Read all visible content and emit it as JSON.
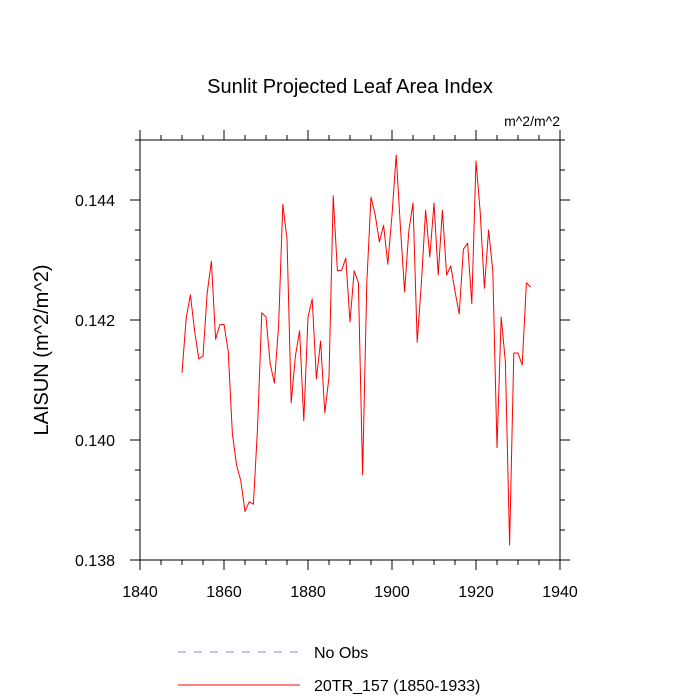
{
  "chart_data": {
    "type": "line",
    "title": "Sunlit Projected Leaf Area Index",
    "units_label": "m^2/m^2",
    "xlabel": "",
    "ylabel": "LAISUN  (m^2/m^2)",
    "xlim": [
      1840,
      1940
    ],
    "ylim": [
      0.138,
      0.145
    ],
    "xticks": [
      1840,
      1860,
      1880,
      1900,
      1920,
      1940
    ],
    "yticks": [
      0.138,
      0.14,
      0.142,
      0.144
    ],
    "ytick_labels": [
      "0.138",
      "0.140",
      "0.142",
      "0.144"
    ],
    "xminor_step": 5,
    "yminor_step": 0.0005,
    "grid": false,
    "legend_position": "bottom-left",
    "series": [
      {
        "name": "No Obs",
        "color": "#8080ff",
        "style": "dashed",
        "x": [],
        "values": []
      },
      {
        "name": "20TR_157 (1850-1933)",
        "color": "#ff0000",
        "style": "solid",
        "x": [
          1850,
          1851,
          1852,
          1853,
          1854,
          1855,
          1856,
          1857,
          1858,
          1859,
          1860,
          1861,
          1862,
          1863,
          1864,
          1865,
          1866,
          1867,
          1868,
          1869,
          1870,
          1871,
          1872,
          1873,
          1874,
          1875,
          1876,
          1877,
          1878,
          1879,
          1880,
          1881,
          1882,
          1883,
          1884,
          1885,
          1886,
          1887,
          1888,
          1889,
          1890,
          1891,
          1892,
          1893,
          1894,
          1895,
          1896,
          1897,
          1898,
          1899,
          1900,
          1901,
          1902,
          1903,
          1904,
          1905,
          1906,
          1907,
          1908,
          1909,
          1910,
          1911,
          1912,
          1913,
          1914,
          1915,
          1916,
          1917,
          1918,
          1919,
          1920,
          1921,
          1922,
          1923,
          1924,
          1925,
          1926,
          1927,
          1928,
          1929,
          1930,
          1931,
          1932,
          1933
        ],
        "values": [
          0.14112,
          0.14203,
          0.14242,
          0.14182,
          0.14135,
          0.1414,
          0.14245,
          0.14298,
          0.14168,
          0.14192,
          0.14193,
          0.14148,
          0.1401,
          0.13958,
          0.13932,
          0.13881,
          0.13897,
          0.13893,
          0.14022,
          0.14212,
          0.14205,
          0.14127,
          0.14095,
          0.1419,
          0.14393,
          0.14335,
          0.14062,
          0.1414,
          0.14182,
          0.14032,
          0.14205,
          0.14235,
          0.14102,
          0.14165,
          0.14045,
          0.14105,
          0.14407,
          0.14282,
          0.14283,
          0.14303,
          0.14197,
          0.14282,
          0.14262,
          0.13942,
          0.14262,
          0.14405,
          0.14375,
          0.1433,
          0.14358,
          0.14293,
          0.14375,
          0.14475,
          0.14355,
          0.14247,
          0.14348,
          0.14395,
          0.14163,
          0.14262,
          0.14383,
          0.14305,
          0.14395,
          0.14275,
          0.14383,
          0.14275,
          0.1429,
          0.14248,
          0.1421,
          0.14318,
          0.14328,
          0.14227,
          0.14465,
          0.1438,
          0.14253,
          0.1435,
          0.14282,
          0.13987,
          0.14205,
          0.1413,
          0.13825,
          0.14145,
          0.14145,
          0.14125,
          0.14262,
          0.14255
        ]
      }
    ]
  }
}
